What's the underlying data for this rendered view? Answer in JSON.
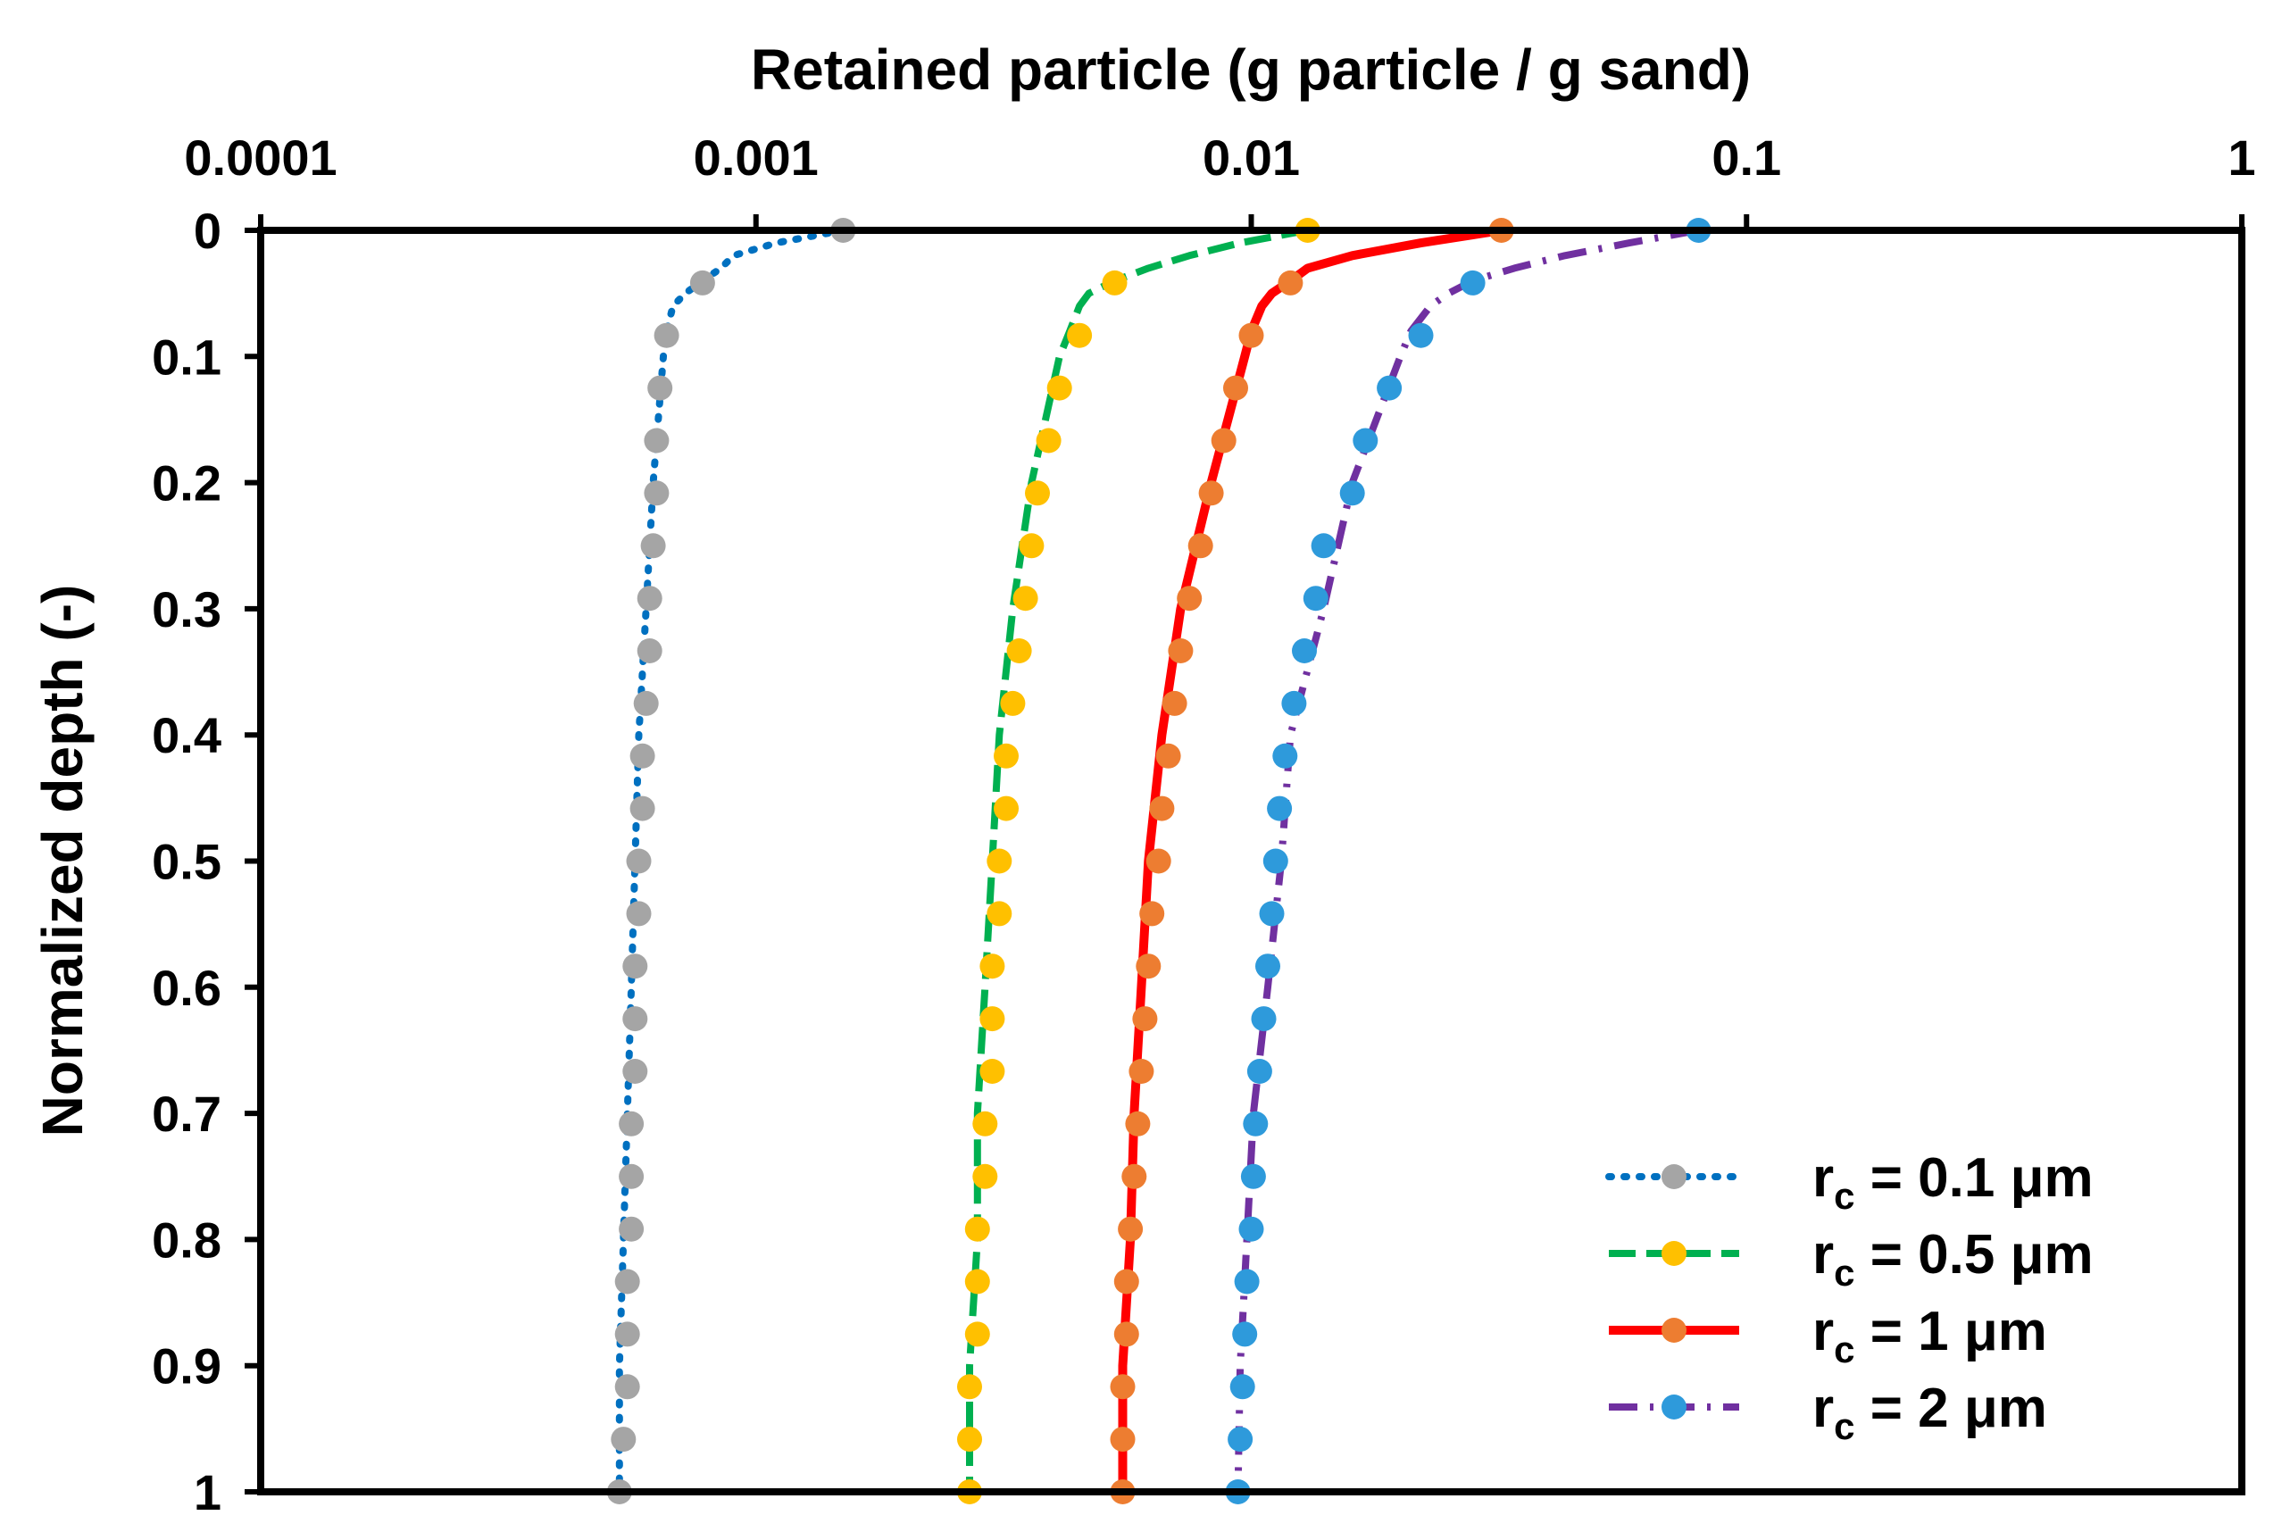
{
  "chart_data": {
    "type": "line",
    "xlabel": "Retained particle (g particle / g sand)",
    "ylabel": "Normalized depth (-)",
    "x_scale": "log",
    "xlim": [
      0.0001,
      1
    ],
    "ylim": [
      0,
      1
    ],
    "y_inverted": true,
    "x_axis_position": "top",
    "x_ticks": [
      0.0001,
      0.001,
      0.01,
      0.1,
      1
    ],
    "x_tick_labels": [
      "0.0001",
      "0.001",
      "0.01",
      "0.1",
      "1"
    ],
    "y_ticks": [
      0,
      0.1,
      0.2,
      0.3,
      0.4,
      0.5,
      0.6,
      0.7,
      0.8,
      0.9,
      1
    ],
    "y_tick_labels": [
      "0",
      "0.1",
      "0.2",
      "0.3",
      "0.4",
      "0.5",
      "0.6",
      "0.7",
      "0.8",
      "0.9",
      "1"
    ],
    "grid": false,
    "legend_position": "bottom-right",
    "line_styles": [
      "dotted",
      "dashed",
      "solid",
      "dashdot"
    ],
    "line_colors": [
      "#0070C0",
      "#00B050",
      "#FF0000",
      "#7030A0"
    ],
    "marker_colors": [
      "#A5A5A5",
      "#FFC000",
      "#ED7D31",
      "#2E9ADB"
    ],
    "series": [
      {
        "legend_main": "r",
        "legend_sub": "c",
        "legend_rest": " = 0.1 μm",
        "line_depth": [
          0,
          0.01,
          0.02,
          0.03,
          0.04,
          0.05,
          0.06,
          0.08,
          0.1,
          0.2,
          0.3,
          0.4,
          0.5,
          0.6,
          0.7,
          0.8,
          0.9,
          1
        ],
        "line_value": [
          0.0015,
          0.0011,
          0.0009,
          0.00085,
          0.00078,
          0.00072,
          0.00068,
          0.00066,
          0.00065,
          0.00062,
          0.0006,
          0.00058,
          0.00057,
          0.00056,
          0.00055,
          0.00054,
          0.00053,
          0.00053
        ],
        "marker_depth": [
          0,
          0.0417,
          0.0833,
          0.125,
          0.1667,
          0.2083,
          0.25,
          0.2917,
          0.3333,
          0.375,
          0.4167,
          0.4583,
          0.5,
          0.5417,
          0.5833,
          0.625,
          0.6667,
          0.7083,
          0.75,
          0.7917,
          0.8333,
          0.875,
          0.9167,
          0.9583,
          1
        ],
        "marker_value": [
          0.0015,
          0.00078,
          0.00066,
          0.00064,
          0.00063,
          0.00063,
          0.00062,
          0.00061,
          0.00061,
          0.0006,
          0.00059,
          0.00059,
          0.00058,
          0.00058,
          0.00057,
          0.00057,
          0.00057,
          0.00056,
          0.00056,
          0.00056,
          0.00055,
          0.00055,
          0.00055,
          0.00054,
          0.00053
        ]
      },
      {
        "legend_main": "r",
        "legend_sub": "c",
        "legend_rest": " = 0.5 μm",
        "line_depth": [
          0,
          0.01,
          0.02,
          0.03,
          0.04,
          0.05,
          0.06,
          0.08,
          0.1,
          0.2,
          0.3,
          0.4,
          0.5,
          0.6,
          0.7,
          0.8,
          0.9,
          1
        ],
        "line_value": [
          0.013,
          0.0095,
          0.0075,
          0.0062,
          0.0053,
          0.0047,
          0.0045,
          0.0043,
          0.0041,
          0.0036,
          0.0033,
          0.0031,
          0.003,
          0.0029,
          0.0028,
          0.0028,
          0.0027,
          0.0027
        ],
        "marker_depth": [
          0,
          0.0417,
          0.0833,
          0.125,
          0.1667,
          0.2083,
          0.25,
          0.2917,
          0.3333,
          0.375,
          0.4167,
          0.4583,
          0.5,
          0.5417,
          0.5833,
          0.625,
          0.6667,
          0.7083,
          0.75,
          0.7917,
          0.8333,
          0.875,
          0.9167,
          0.9583,
          1
        ],
        "marker_value": [
          0.013,
          0.0053,
          0.0045,
          0.0041,
          0.0039,
          0.0037,
          0.0036,
          0.0035,
          0.0034,
          0.0033,
          0.0032,
          0.0032,
          0.0031,
          0.0031,
          0.003,
          0.003,
          0.003,
          0.0029,
          0.0029,
          0.0028,
          0.0028,
          0.0028,
          0.0027,
          0.0027,
          0.0027
        ]
      },
      {
        "legend_main": "r",
        "legend_sub": "c",
        "legend_rest": " = 1 μm",
        "line_depth": [
          0,
          0.01,
          0.02,
          0.03,
          0.04,
          0.05,
          0.06,
          0.08,
          0.1,
          0.2,
          0.3,
          0.4,
          0.5,
          0.6,
          0.7,
          0.8,
          0.9,
          1
        ],
        "line_value": [
          0.032,
          0.022,
          0.016,
          0.013,
          0.012,
          0.011,
          0.0105,
          0.01,
          0.0097,
          0.0083,
          0.0072,
          0.0066,
          0.0062,
          0.006,
          0.0058,
          0.0057,
          0.0055,
          0.0055
        ],
        "marker_depth": [
          0,
          0.0417,
          0.0833,
          0.125,
          0.1667,
          0.2083,
          0.25,
          0.2917,
          0.3333,
          0.375,
          0.4167,
          0.4583,
          0.5,
          0.5417,
          0.5833,
          0.625,
          0.6667,
          0.7083,
          0.75,
          0.7917,
          0.8333,
          0.875,
          0.9167,
          0.9583,
          1
        ],
        "marker_value": [
          0.032,
          0.012,
          0.01,
          0.0093,
          0.0088,
          0.0083,
          0.0079,
          0.0075,
          0.0072,
          0.007,
          0.0068,
          0.0066,
          0.0065,
          0.0063,
          0.0062,
          0.0061,
          0.006,
          0.0059,
          0.0058,
          0.0057,
          0.0056,
          0.0056,
          0.0055,
          0.0055,
          0.0055
        ]
      },
      {
        "legend_main": "r",
        "legend_sub": "c",
        "legend_rest": " = 2 μm",
        "line_depth": [
          0,
          0.01,
          0.02,
          0.03,
          0.04,
          0.05,
          0.06,
          0.08,
          0.1,
          0.2,
          0.3,
          0.4,
          0.5,
          0.6,
          0.7,
          0.8,
          0.9,
          1
        ],
        "line_value": [
          0.08,
          0.058,
          0.043,
          0.034,
          0.028,
          0.025,
          0.023,
          0.021,
          0.02,
          0.016,
          0.014,
          0.012,
          0.0115,
          0.0108,
          0.0101,
          0.0098,
          0.0095,
          0.0094
        ],
        "marker_depth": [
          0,
          0.0417,
          0.0833,
          0.125,
          0.1667,
          0.2083,
          0.25,
          0.2917,
          0.3333,
          0.375,
          0.4167,
          0.4583,
          0.5,
          0.5417,
          0.5833,
          0.625,
          0.6667,
          0.7083,
          0.75,
          0.7917,
          0.8333,
          0.875,
          0.9167,
          0.9583,
          1
        ],
        "marker_value": [
          0.08,
          0.028,
          0.022,
          0.019,
          0.017,
          0.016,
          0.014,
          0.0135,
          0.0128,
          0.0122,
          0.0117,
          0.0114,
          0.0112,
          0.011,
          0.0108,
          0.0106,
          0.0104,
          0.0102,
          0.0101,
          0.01,
          0.0098,
          0.0097,
          0.0096,
          0.0095,
          0.0094
        ]
      }
    ]
  }
}
